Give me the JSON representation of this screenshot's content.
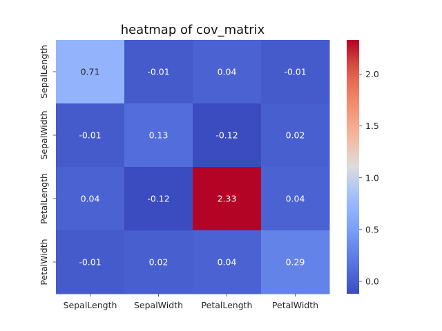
{
  "chart_data": {
    "type": "heatmap",
    "title": "heatmap of cov_matrix",
    "xlabel": "",
    "ylabel": "",
    "x_categories": [
      "SepalLength",
      "SepalWidth",
      "PetalLength",
      "PetalWidth"
    ],
    "y_categories": [
      "SepalLength",
      "SepalWidth",
      "PetalLength",
      "PetalWidth"
    ],
    "values": [
      [
        0.71,
        -0.01,
        0.04,
        -0.01
      ],
      [
        -0.01,
        0.13,
        -0.12,
        0.02
      ],
      [
        0.04,
        -0.12,
        2.33,
        0.04
      ],
      [
        -0.01,
        0.02,
        0.04,
        0.29
      ]
    ],
    "colormap": "coolwarm",
    "color_range": [
      -0.12,
      2.33
    ],
    "colorbar_ticks": [
      0.0,
      0.5,
      1.0,
      1.5,
      2.0
    ],
    "colorbar_tick_labels": [
      "0.0",
      "0.5",
      "1.0",
      "1.5",
      "2.0"
    ],
    "annotations": true
  }
}
